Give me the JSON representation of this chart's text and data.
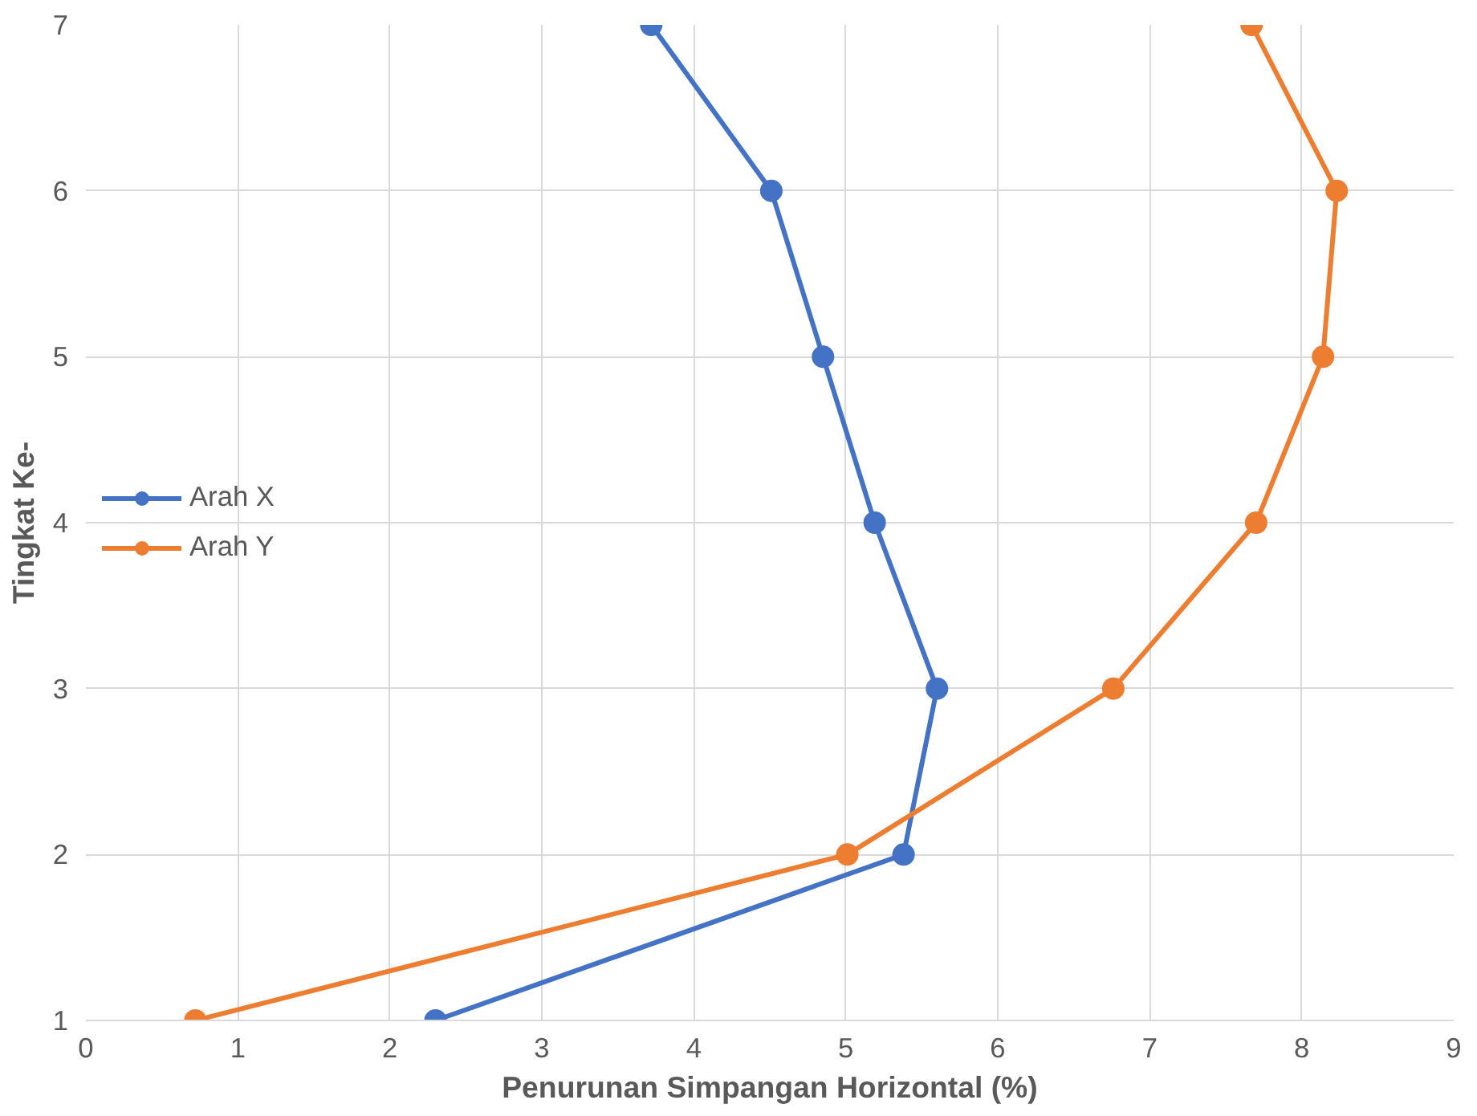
{
  "chart_data": {
    "type": "line",
    "xlabel": "Penurunan Simpangan Horizontal (%)",
    "ylabel": "Tingkat Ke-",
    "series": [
      {
        "name": "Arah X",
        "color": "#4472c4",
        "x": [
          2.3,
          5.38,
          5.6,
          5.19,
          4.85,
          4.51,
          3.72
        ],
        "values": [
          1,
          2,
          3,
          4,
          5,
          6,
          7
        ]
      },
      {
        "name": "Arah Y",
        "color": "#ed7d31",
        "x": [
          0.72,
          5.01,
          6.76,
          7.7,
          8.14,
          8.23,
          7.67
        ],
        "values": [
          1,
          2,
          3,
          4,
          5,
          6,
          7
        ]
      }
    ],
    "xlim": [
      0,
      9
    ],
    "xticks": [
      0,
      1,
      2,
      3,
      4,
      5,
      6,
      7,
      8,
      9
    ],
    "ylim": [
      1,
      7
    ],
    "yticks": [
      1,
      2,
      3,
      4,
      5,
      6,
      7
    ],
    "grid": true,
    "legend": "left",
    "marker": "circle",
    "line_style": "solid"
  }
}
